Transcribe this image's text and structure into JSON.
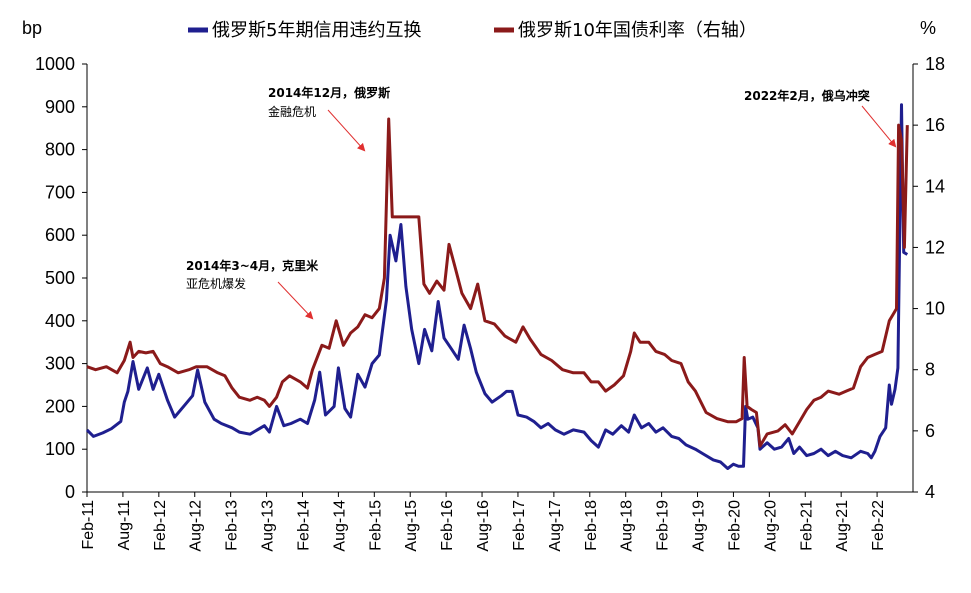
{
  "chart_data": {
    "type": "line",
    "y_left_unit": "bp",
    "y_right_unit": "%",
    "y_left_ticks": [
      "0",
      "100",
      "200",
      "300",
      "400",
      "500",
      "600",
      "700",
      "800",
      "900",
      "1000"
    ],
    "y_right_ticks": [
      "4",
      "6",
      "8",
      "10",
      "12",
      "14",
      "16",
      "18"
    ],
    "ylim_left": [
      0,
      1000
    ],
    "ylim_right": [
      4,
      18
    ],
    "x_ticks": [
      "Feb-11",
      "Aug-11",
      "Feb-12",
      "Aug-12",
      "Feb-13",
      "Aug-13",
      "Feb-14",
      "Aug-14",
      "Feb-15",
      "Aug-15",
      "Feb-16",
      "Aug-16",
      "Feb-17",
      "Aug-17",
      "Feb-18",
      "Aug-18",
      "Feb-19",
      "Aug-19",
      "Feb-20",
      "Aug-20",
      "Feb-21",
      "Aug-21",
      "Feb-22"
    ],
    "grid": false,
    "legend_position": "top",
    "series": [
      {
        "name": "俄罗斯5年期信用违约互换",
        "axis": "left",
        "color": "#1f1f8f",
        "points": [
          [
            2011.08,
            145
          ],
          [
            2011.17,
            130
          ],
          [
            2011.3,
            138
          ],
          [
            2011.42,
            148
          ],
          [
            2011.55,
            165
          ],
          [
            2011.6,
            210
          ],
          [
            2011.65,
            235
          ],
          [
            2011.72,
            305
          ],
          [
            2011.8,
            240
          ],
          [
            2011.92,
            290
          ],
          [
            2012.0,
            240
          ],
          [
            2012.08,
            275
          ],
          [
            2012.2,
            215
          ],
          [
            2012.3,
            175
          ],
          [
            2012.45,
            205
          ],
          [
            2012.55,
            225
          ],
          [
            2012.62,
            285
          ],
          [
            2012.72,
            210
          ],
          [
            2012.85,
            170
          ],
          [
            2012.95,
            160
          ],
          [
            2013.1,
            150
          ],
          [
            2013.2,
            140
          ],
          [
            2013.35,
            135
          ],
          [
            2013.45,
            145
          ],
          [
            2013.55,
            155
          ],
          [
            2013.62,
            140
          ],
          [
            2013.72,
            200
          ],
          [
            2013.82,
            155
          ],
          [
            2013.92,
            160
          ],
          [
            2014.05,
            170
          ],
          [
            2014.15,
            160
          ],
          [
            2014.25,
            215
          ],
          [
            2014.32,
            280
          ],
          [
            2014.4,
            180
          ],
          [
            2014.52,
            200
          ],
          [
            2014.58,
            290
          ],
          [
            2014.67,
            195
          ],
          [
            2014.75,
            175
          ],
          [
            2014.85,
            275
          ],
          [
            2014.95,
            245
          ],
          [
            2015.05,
            300
          ],
          [
            2015.15,
            320
          ],
          [
            2015.25,
            450
          ],
          [
            2015.3,
            600
          ],
          [
            2015.38,
            540
          ],
          [
            2015.45,
            625
          ],
          [
            2015.52,
            480
          ],
          [
            2015.6,
            380
          ],
          [
            2015.7,
            300
          ],
          [
            2015.78,
            380
          ],
          [
            2015.88,
            330
          ],
          [
            2015.97,
            445
          ],
          [
            2016.05,
            360
          ],
          [
            2016.15,
            335
          ],
          [
            2016.25,
            310
          ],
          [
            2016.33,
            390
          ],
          [
            2016.42,
            335
          ],
          [
            2016.5,
            280
          ],
          [
            2016.62,
            230
          ],
          [
            2016.72,
            210
          ],
          [
            2016.85,
            225
          ],
          [
            2016.92,
            235
          ],
          [
            2017.0,
            235
          ],
          [
            2017.08,
            180
          ],
          [
            2017.2,
            175
          ],
          [
            2017.3,
            165
          ],
          [
            2017.4,
            150
          ],
          [
            2017.5,
            160
          ],
          [
            2017.6,
            145
          ],
          [
            2017.72,
            135
          ],
          [
            2017.85,
            145
          ],
          [
            2018.0,
            140
          ],
          [
            2018.1,
            120
          ],
          [
            2018.2,
            105
          ],
          [
            2018.3,
            145
          ],
          [
            2018.4,
            135
          ],
          [
            2018.52,
            155
          ],
          [
            2018.62,
            140
          ],
          [
            2018.7,
            180
          ],
          [
            2018.8,
            150
          ],
          [
            2018.9,
            160
          ],
          [
            2019.0,
            140
          ],
          [
            2019.1,
            150
          ],
          [
            2019.22,
            130
          ],
          [
            2019.32,
            125
          ],
          [
            2019.42,
            110
          ],
          [
            2019.55,
            100
          ],
          [
            2019.65,
            90
          ],
          [
            2019.8,
            75
          ],
          [
            2019.9,
            70
          ],
          [
            2020.0,
            55
          ],
          [
            2020.08,
            65
          ],
          [
            2020.15,
            60
          ],
          [
            2020.22,
            60
          ],
          [
            2020.25,
            200
          ],
          [
            2020.28,
            170
          ],
          [
            2020.35,
            175
          ],
          [
            2020.42,
            150
          ],
          [
            2020.45,
            100
          ],
          [
            2020.55,
            115
          ],
          [
            2020.65,
            100
          ],
          [
            2020.75,
            105
          ],
          [
            2020.85,
            125
          ],
          [
            2020.92,
            90
          ],
          [
            2021.0,
            105
          ],
          [
            2021.1,
            85
          ],
          [
            2021.2,
            90
          ],
          [
            2021.3,
            100
          ],
          [
            2021.4,
            85
          ],
          [
            2021.5,
            95
          ],
          [
            2021.6,
            85
          ],
          [
            2021.72,
            80
          ],
          [
            2021.85,
            95
          ],
          [
            2021.95,
            90
          ],
          [
            2022.0,
            80
          ],
          [
            2022.05,
            95
          ],
          [
            2022.12,
            130
          ],
          [
            2022.2,
            150
          ],
          [
            2022.25,
            250
          ],
          [
            2022.28,
            205
          ],
          [
            2022.33,
            240
          ],
          [
            2022.37,
            290
          ],
          [
            2022.42,
            905
          ],
          [
            2022.45,
            560
          ],
          [
            2022.5,
            555
          ]
        ]
      },
      {
        "name": "俄罗斯10年国债利率（右轴）",
        "axis": "right",
        "color": "#8b1a1a",
        "points": [
          [
            2011.08,
            8.1
          ],
          [
            2011.2,
            8.0
          ],
          [
            2011.35,
            8.1
          ],
          [
            2011.5,
            7.9
          ],
          [
            2011.6,
            8.3
          ],
          [
            2011.68,
            8.9
          ],
          [
            2011.72,
            8.4
          ],
          [
            2011.8,
            8.6
          ],
          [
            2011.9,
            8.55
          ],
          [
            2012.0,
            8.6
          ],
          [
            2012.1,
            8.2
          ],
          [
            2012.2,
            8.1
          ],
          [
            2012.35,
            7.9
          ],
          [
            2012.5,
            8.0
          ],
          [
            2012.6,
            8.1
          ],
          [
            2012.75,
            8.1
          ],
          [
            2012.9,
            7.9
          ],
          [
            2013.0,
            7.8
          ],
          [
            2013.1,
            7.4
          ],
          [
            2013.2,
            7.1
          ],
          [
            2013.35,
            7.0
          ],
          [
            2013.45,
            7.1
          ],
          [
            2013.55,
            7.0
          ],
          [
            2013.62,
            6.8
          ],
          [
            2013.72,
            7.1
          ],
          [
            2013.8,
            7.6
          ],
          [
            2013.9,
            7.8
          ],
          [
            2014.05,
            7.6
          ],
          [
            2014.15,
            7.4
          ],
          [
            2014.22,
            8.0
          ],
          [
            2014.35,
            8.8
          ],
          [
            2014.45,
            8.7
          ],
          [
            2014.55,
            9.6
          ],
          [
            2014.65,
            8.8
          ],
          [
            2014.75,
            9.2
          ],
          [
            2014.85,
            9.4
          ],
          [
            2014.95,
            9.8
          ],
          [
            2015.05,
            9.7
          ],
          [
            2015.15,
            10.0
          ],
          [
            2015.22,
            11.0
          ],
          [
            2015.28,
            16.2
          ],
          [
            2015.33,
            13.0
          ],
          [
            2015.5,
            13.0
          ],
          [
            2015.7,
            13.0
          ],
          [
            2015.77,
            10.8
          ],
          [
            2015.85,
            10.5
          ],
          [
            2015.95,
            10.9
          ],
          [
            2016.05,
            10.6
          ],
          [
            2016.12,
            12.1
          ],
          [
            2016.2,
            11.4
          ],
          [
            2016.3,
            10.5
          ],
          [
            2016.42,
            10.0
          ],
          [
            2016.52,
            10.8
          ],
          [
            2016.62,
            9.6
          ],
          [
            2016.75,
            9.5
          ],
          [
            2016.9,
            9.1
          ],
          [
            2017.05,
            8.9
          ],
          [
            2017.15,
            9.4
          ],
          [
            2017.25,
            9.0
          ],
          [
            2017.4,
            8.5
          ],
          [
            2017.55,
            8.3
          ],
          [
            2017.7,
            8.0
          ],
          [
            2017.85,
            7.9
          ],
          [
            2018.0,
            7.9
          ],
          [
            2018.1,
            7.6
          ],
          [
            2018.2,
            7.6
          ],
          [
            2018.3,
            7.3
          ],
          [
            2018.42,
            7.5
          ],
          [
            2018.55,
            7.8
          ],
          [
            2018.65,
            8.6
          ],
          [
            2018.7,
            9.2
          ],
          [
            2018.78,
            8.9
          ],
          [
            2018.9,
            8.9
          ],
          [
            2019.0,
            8.6
          ],
          [
            2019.12,
            8.5
          ],
          [
            2019.22,
            8.3
          ],
          [
            2019.35,
            8.2
          ],
          [
            2019.45,
            7.6
          ],
          [
            2019.55,
            7.3
          ],
          [
            2019.7,
            6.6
          ],
          [
            2019.85,
            6.4
          ],
          [
            2020.0,
            6.3
          ],
          [
            2020.12,
            6.3
          ],
          [
            2020.2,
            6.4
          ],
          [
            2020.23,
            8.4
          ],
          [
            2020.27,
            6.8
          ],
          [
            2020.33,
            6.7
          ],
          [
            2020.4,
            6.6
          ],
          [
            2020.45,
            5.5
          ],
          [
            2020.55,
            5.9
          ],
          [
            2020.7,
            6.0
          ],
          [
            2020.8,
            6.2
          ],
          [
            2020.9,
            5.9
          ],
          [
            2021.0,
            6.3
          ],
          [
            2021.1,
            6.7
          ],
          [
            2021.2,
            7.0
          ],
          [
            2021.3,
            7.1
          ],
          [
            2021.4,
            7.3
          ],
          [
            2021.55,
            7.2
          ],
          [
            2021.65,
            7.3
          ],
          [
            2021.75,
            7.4
          ],
          [
            2021.85,
            8.1
          ],
          [
            2021.95,
            8.4
          ],
          [
            2022.05,
            8.5
          ],
          [
            2022.15,
            8.6
          ],
          [
            2022.25,
            9.6
          ],
          [
            2022.3,
            9.8
          ],
          [
            2022.35,
            10.0
          ],
          [
            2022.38,
            16.0
          ],
          [
            2022.42,
            15.5
          ],
          [
            2022.46,
            12.0
          ],
          [
            2022.5,
            16.0
          ]
        ]
      }
    ],
    "annotations": [
      {
        "lines": [
          "2014年12月，俄罗斯",
          "金融危机"
        ],
        "bold_first": true
      },
      {
        "lines": [
          "2014年3~4月，克里米",
          "亚危机爆发"
        ],
        "bold_first": true
      },
      {
        "lines": [
          "2022年2月，俄乌冲突"
        ],
        "bold_first": true
      }
    ]
  }
}
